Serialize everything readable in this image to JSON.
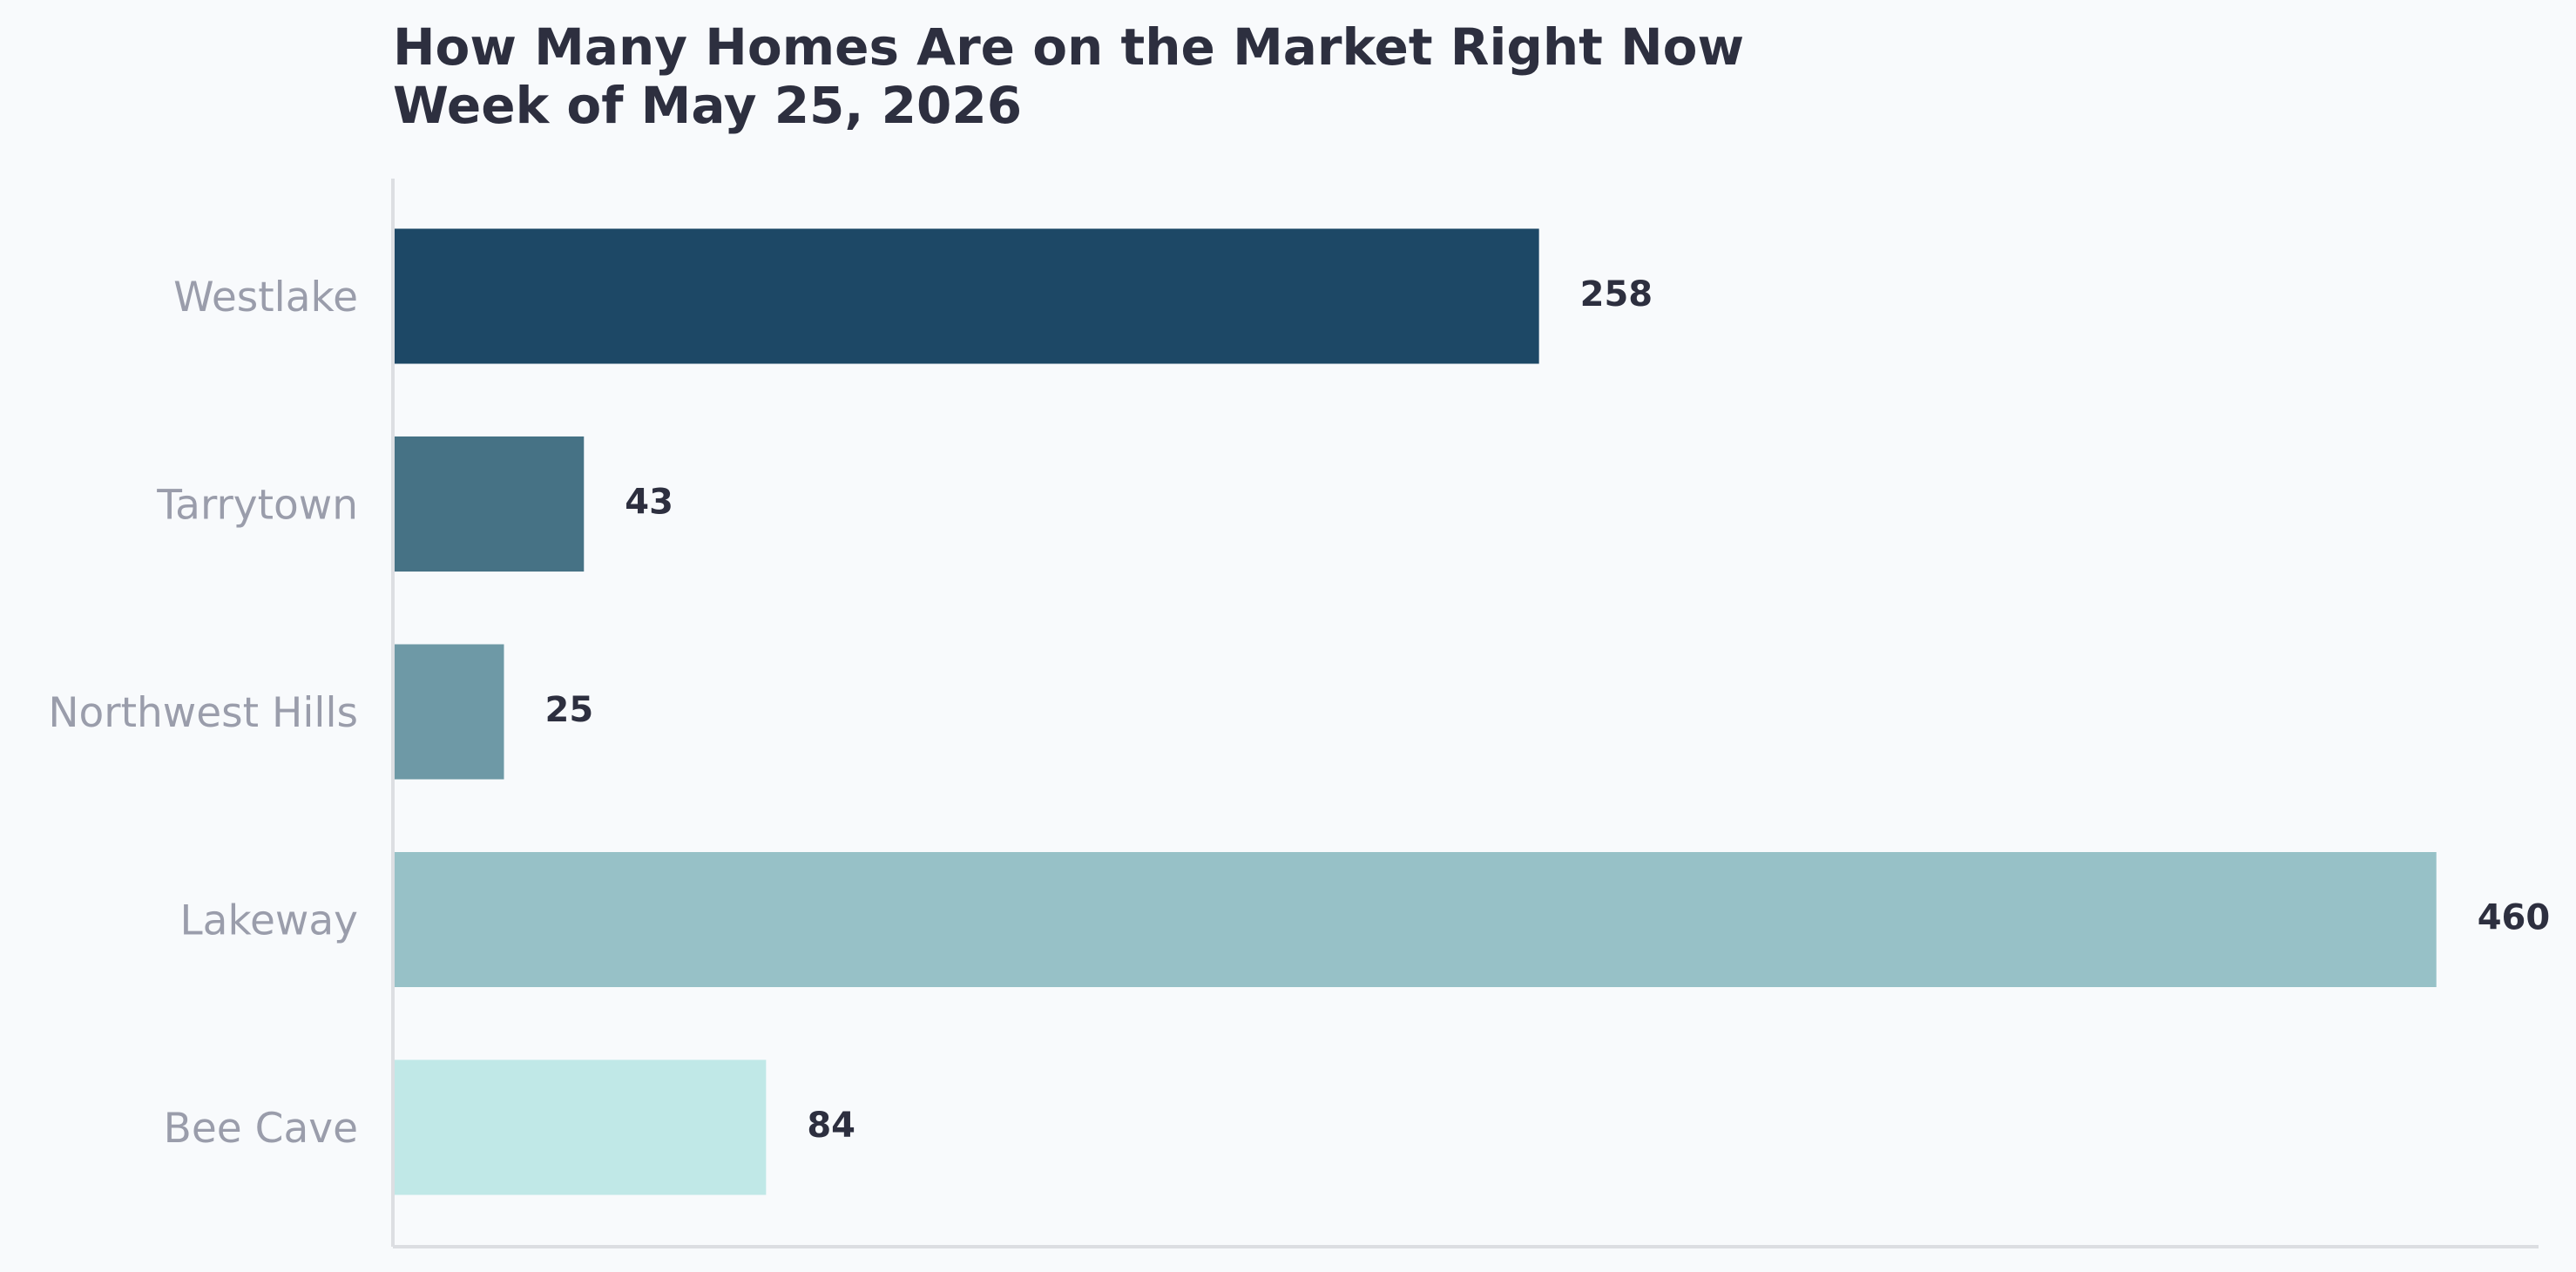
{
  "chart_data": {
    "type": "bar",
    "orientation": "horizontal",
    "title": "How Many Homes Are on the Market Right Now",
    "subtitle": "Week of May 25, 2026",
    "categories": [
      "Westlake",
      "Tarrytown",
      "Northwest Hills",
      "Lakeway",
      "Bee Cave"
    ],
    "values": [
      258,
      43,
      25,
      460,
      84
    ],
    "value_labels": [
      "258",
      "43",
      "25",
      "460",
      "84"
    ],
    "colors": [
      "#1d4866",
      "#467285",
      "#6e99a6",
      "#97c1c7",
      "#c0e8e7"
    ],
    "xlabel": "",
    "ylabel": "",
    "xlim": [
      0,
      483
    ],
    "grid": false,
    "legend": "none"
  }
}
